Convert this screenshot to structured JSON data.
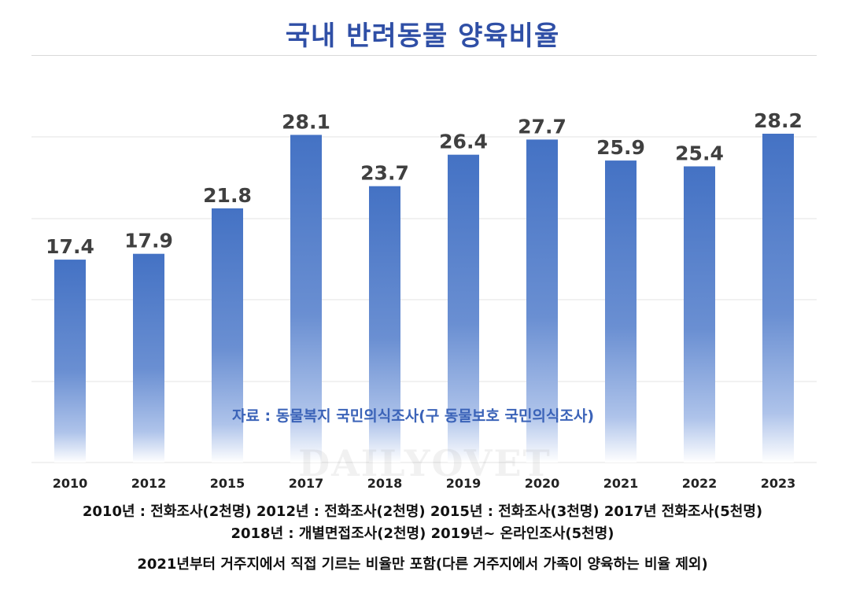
{
  "title": "국내 반려동물 양육비율",
  "source_note": "자료 : 동물복지 국민의식조사(구 동물보호 국민의식조사)",
  "watermark": "DAILYOVET",
  "footnotes": [
    "2010년 : 전화조사(2천명)  2012년 : 전화조사(2천명)  2015년 : 전화조사(3천명)  2017년 전화조사(5천명)",
    "2018년 : 개별면접조사(2천명)  2019년~ 온라인조사(5천명)",
    "2021년부터 거주지에서 직접 기르는 비율만 포함(다른 거주지에서 가족이 양육하는 비율 제외)"
  ],
  "colors": {
    "title": "#2f4fa6",
    "bar_top": "#4472c4",
    "bar_fade": "#ffffff",
    "source_note": "#3b63b8"
  },
  "chart_data": {
    "type": "bar",
    "title": "국내 반려동물 양육비율",
    "categories": [
      "2010",
      "2012",
      "2015",
      "2017",
      "2018",
      "2019",
      "2020",
      "2021",
      "2022",
      "2023"
    ],
    "values": [
      17.4,
      17.9,
      21.8,
      28.1,
      23.7,
      26.4,
      27.7,
      25.9,
      25.4,
      28.2
    ],
    "xlabel": "",
    "ylabel": "",
    "ylim": [
      0,
      30
    ],
    "grid": true,
    "data_labels": true
  }
}
